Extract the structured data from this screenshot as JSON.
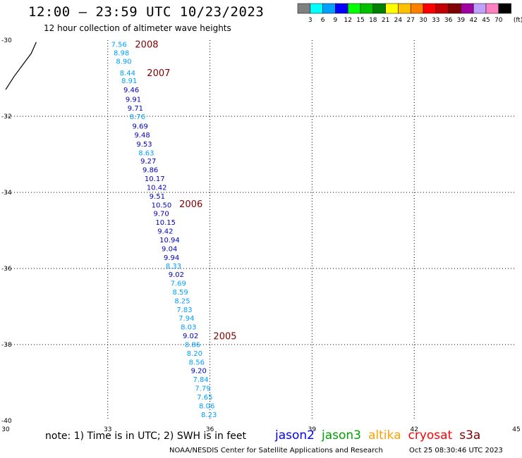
{
  "header": {
    "title": "12:00 – 23:59 UTC 10/23/2023",
    "subtitle": "12 hour collection of altimeter wave heights"
  },
  "legend": {
    "colors": [
      "#808080",
      "#00ffff",
      "#00a0ff",
      "#0000ff",
      "#00ff00",
      "#00c000",
      "#008000",
      "#ffff00",
      "#ffc000",
      "#ff8000",
      "#ff0000",
      "#c00000",
      "#800000",
      "#a000a0",
      "#c0a0ff",
      "#ff80c0",
      "#000000"
    ],
    "labels": [
      "3",
      "6",
      "9",
      "12",
      "15",
      "18",
      "21",
      "24",
      "27",
      "30",
      "33",
      "36",
      "39",
      "42",
      "45",
      "70",
      "(ft)"
    ]
  },
  "map": {
    "lon_range": [
      30,
      45
    ],
    "lat_range": [
      -40,
      -30
    ],
    "lon_ticks": [
      "30",
      "33",
      "36",
      "39",
      "42",
      "45"
    ],
    "lat_ticks": [
      "-30",
      "-32",
      "-34",
      "-36",
      "-38",
      "-40"
    ],
    "grid_color": "#000000",
    "coast_color": "#000000",
    "points": [
      {
        "lon": 33.1,
        "lat": -30.1,
        "v": "7.56",
        "c": "#00a0ff"
      },
      {
        "lon": 33.17,
        "lat": -30.32,
        "v": "8.98",
        "c": "#00a0ff"
      },
      {
        "lon": 33.24,
        "lat": -30.55,
        "v": "8.90",
        "c": "#00a0ff"
      },
      {
        "lon": 33.35,
        "lat": -30.85,
        "v": "8.44",
        "c": "#00a0ff"
      },
      {
        "lon": 33.4,
        "lat": -31.06,
        "v": "8.91",
        "c": "#00a0ff"
      },
      {
        "lon": 33.46,
        "lat": -31.3,
        "v": "9.46",
        "c": "#0000c0"
      },
      {
        "lon": 33.52,
        "lat": -31.55,
        "v": "9.91",
        "c": "#0000c0"
      },
      {
        "lon": 33.58,
        "lat": -31.78,
        "v": "9.71",
        "c": "#0000c0"
      },
      {
        "lon": 33.64,
        "lat": -32.0,
        "v": "8.76",
        "c": "#00a0ff"
      },
      {
        "lon": 33.72,
        "lat": -32.25,
        "v": "9.69",
        "c": "#0000c0"
      },
      {
        "lon": 33.78,
        "lat": -32.48,
        "v": "9.48",
        "c": "#0000c0"
      },
      {
        "lon": 33.84,
        "lat": -32.72,
        "v": "9.53",
        "c": "#0000c0"
      },
      {
        "lon": 33.9,
        "lat": -32.95,
        "v": "8.63",
        "c": "#00a0ff"
      },
      {
        "lon": 33.96,
        "lat": -33.17,
        "v": "9.27",
        "c": "#0000c0"
      },
      {
        "lon": 34.02,
        "lat": -33.4,
        "v": "9.86",
        "c": "#0000c0"
      },
      {
        "lon": 34.08,
        "lat": -33.63,
        "v": "10.17",
        "c": "#0000c0"
      },
      {
        "lon": 34.14,
        "lat": -33.86,
        "v": "10.42",
        "c": "#0000c0"
      },
      {
        "lon": 34.22,
        "lat": -34.09,
        "v": "9.51",
        "c": "#0000c0"
      },
      {
        "lon": 34.28,
        "lat": -34.32,
        "v": "10.50",
        "c": "#0000c0"
      },
      {
        "lon": 34.34,
        "lat": -34.55,
        "v": "9.70",
        "c": "#0000c0"
      },
      {
        "lon": 34.4,
        "lat": -34.78,
        "v": "10.15",
        "c": "#0000c0"
      },
      {
        "lon": 34.46,
        "lat": -35.01,
        "v": "9.42",
        "c": "#0000c0"
      },
      {
        "lon": 34.52,
        "lat": -35.24,
        "v": "10.94",
        "c": "#0000c0"
      },
      {
        "lon": 34.58,
        "lat": -35.47,
        "v": "9.04",
        "c": "#0000c0"
      },
      {
        "lon": 34.64,
        "lat": -35.7,
        "v": "9.94",
        "c": "#0000c0"
      },
      {
        "lon": 34.7,
        "lat": -35.93,
        "v": "8.33",
        "c": "#00a0ff"
      },
      {
        "lon": 34.78,
        "lat": -36.15,
        "v": "9.02",
        "c": "#0000c0"
      },
      {
        "lon": 34.84,
        "lat": -36.38,
        "v": "7.69",
        "c": "#00a0ff"
      },
      {
        "lon": 34.9,
        "lat": -36.61,
        "v": "8.59",
        "c": "#00a0ff"
      },
      {
        "lon": 34.96,
        "lat": -36.84,
        "v": "8.25",
        "c": "#00a0ff"
      },
      {
        "lon": 35.02,
        "lat": -37.07,
        "v": "7.83",
        "c": "#00a0ff"
      },
      {
        "lon": 35.08,
        "lat": -37.3,
        "v": "7.94",
        "c": "#00a0ff"
      },
      {
        "lon": 35.14,
        "lat": -37.53,
        "v": "8.03",
        "c": "#00a0ff"
      },
      {
        "lon": 35.2,
        "lat": -37.76,
        "v": "9.02",
        "c": "#0000c0"
      },
      {
        "lon": 35.26,
        "lat": -37.99,
        "v": "8.86",
        "c": "#00a0ff"
      },
      {
        "lon": 35.32,
        "lat": -38.22,
        "v": "8.20",
        "c": "#00a0ff"
      },
      {
        "lon": 35.38,
        "lat": -38.45,
        "v": "8.56",
        "c": "#00a0ff"
      },
      {
        "lon": 35.44,
        "lat": -38.68,
        "v": "9.20",
        "c": "#0000c0"
      },
      {
        "lon": 35.5,
        "lat": -38.91,
        "v": "7.84",
        "c": "#00a0ff"
      },
      {
        "lon": 35.56,
        "lat": -39.14,
        "v": "7.79",
        "c": "#00a0ff"
      },
      {
        "lon": 35.62,
        "lat": -39.37,
        "v": "7.65",
        "c": "#00a0ff"
      },
      {
        "lon": 35.68,
        "lat": -39.6,
        "v": "8.06",
        "c": "#00a0ff"
      },
      {
        "lon": 35.74,
        "lat": -39.83,
        "v": "8.23",
        "c": "#00a0ff"
      }
    ],
    "time_labels": [
      {
        "lon": 33.8,
        "lat": -30.1,
        "t": "2008"
      },
      {
        "lon": 34.15,
        "lat": -30.85,
        "t": "2007"
      },
      {
        "lon": 35.1,
        "lat": -34.3,
        "t": "2006"
      },
      {
        "lon": 36.1,
        "lat": -37.77,
        "t": "2005"
      }
    ]
  },
  "footer": {
    "note": "note:  1) Time is in UTC;  2) SWH is in feet",
    "satellites": [
      {
        "name": "jason2",
        "color": "#0000ff"
      },
      {
        "name": "jason3",
        "color": "#00a000"
      },
      {
        "name": "altika",
        "color": "#ffa000"
      },
      {
        "name": "cryosat",
        "color": "#ff0000"
      },
      {
        "name": "s3a",
        "color": "#800000"
      }
    ],
    "credit": "NOAA/NESDIS Center for Satellite Applications and Research",
    "date": "Oct 25 08:30:46 UTC 2023"
  }
}
